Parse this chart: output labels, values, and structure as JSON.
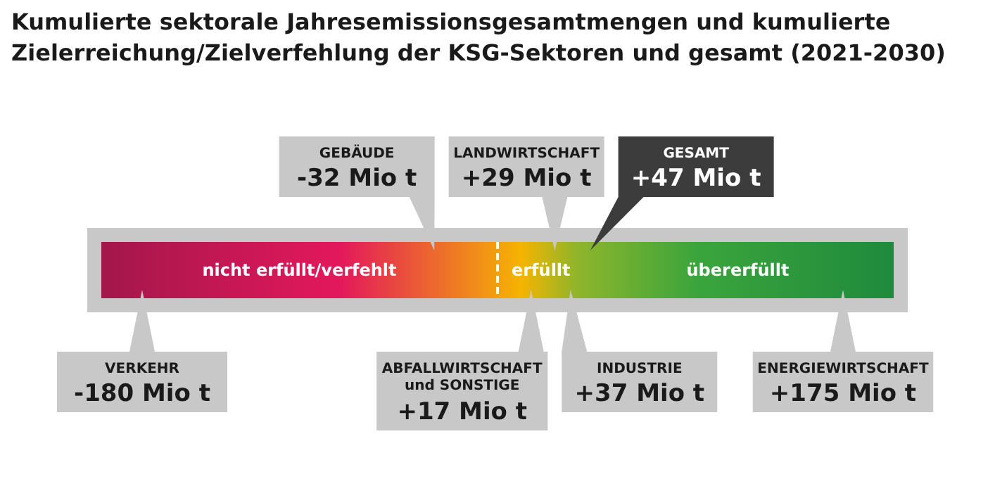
{
  "chart_data": {
    "type": "other",
    "title": "Kumulierte sektorale Jahresemissionsgesamtmengen und kumulierte Zielerreichung/Zielverfehlung der KSG-Sektoren und gesamt (2021-2030)",
    "categories": [
      "VERKEHR",
      "GEBÄUDE",
      "ABFALLWIRTSCHAFT und SONSTIGE",
      "LANDWIRTSCHAFT",
      "INDUSTRIE",
      "GESAMT",
      "ENERGIEWIRTSCHAFT"
    ],
    "values": [
      -180,
      -32,
      17,
      29,
      37,
      47,
      175
    ],
    "value_labels": [
      "-180 Mio t",
      "-32 Mio t",
      "+17 Mio t",
      "+29 Mio t",
      "+37 Mio t",
      "+47 Mio t",
      "+175 Mio t"
    ],
    "colors": [
      "#c8c8c8",
      "#c8c8c8",
      "#c8c8c8",
      "#c8c8c8",
      "#c8c8c8",
      "#3c3c3c",
      "#c8c8c8"
    ],
    "annotations": [
      "nicht erfüllt/verfehlt",
      "erfüllt",
      "übererfüllt"
    ]
  }
}
